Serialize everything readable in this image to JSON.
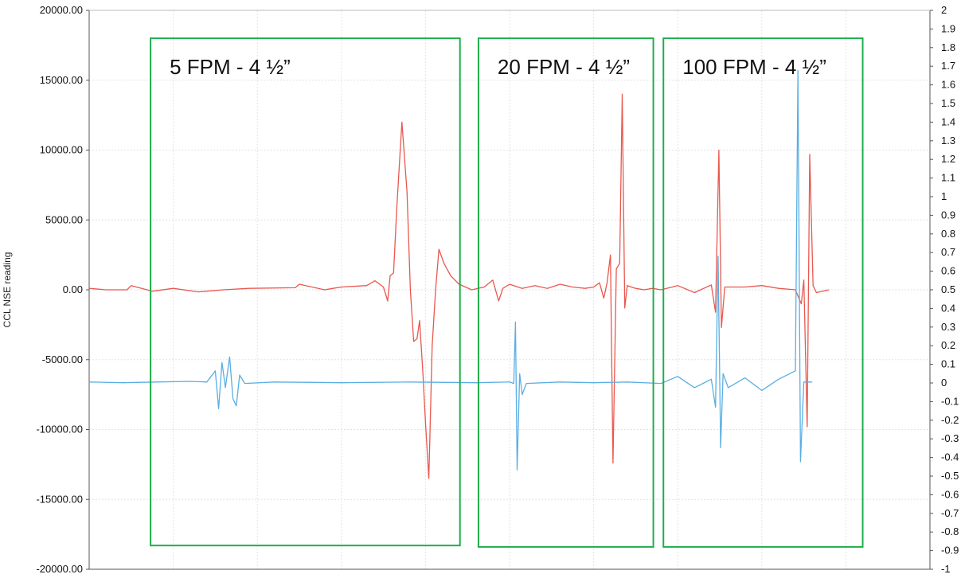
{
  "chart_data": {
    "type": "line",
    "title": "",
    "xlabel": "",
    "ylabel": "CCL NSE reading",
    "xlim": [
      0,
      1000
    ],
    "ylim": [
      -20000,
      20000
    ],
    "y2lim": [
      -1,
      2
    ],
    "grid": true,
    "legend": "none",
    "y_ticks": [
      "20000.00",
      "15000.00",
      "10000.00",
      "5000.00",
      "0.00",
      "-5000.00",
      "-10000.00",
      "-15000.00",
      "-20000.00"
    ],
    "y2_ticks": [
      "2",
      "1.9",
      "1.8",
      "1.7",
      "1.6",
      "1.5",
      "1.4",
      "1.3",
      "1.2",
      "1.1",
      "1",
      "0.9",
      "0.8",
      "0.7",
      "0.6",
      "0.5",
      "0.4",
      "0.3",
      "0.2",
      "0.1",
      "0",
      "-0.1",
      "-0.2",
      "-0.3",
      "-0.4",
      "-0.5",
      "-0.6",
      "-0.7",
      "-0.8",
      "-0.9",
      "-1"
    ],
    "boxes": [
      {
        "label": "5 FPM - 4 ½”",
        "x": [
          73,
          441
        ],
        "y": [
          -18300,
          18000
        ]
      },
      {
        "label": "20 FPM - 4 ½”",
        "x": [
          463,
          671
        ],
        "y": [
          -18400,
          18000
        ]
      },
      {
        "label": "100 FPM - 4 ½”",
        "x": [
          683,
          920
        ],
        "y": [
          -18400,
          18000
        ]
      }
    ],
    "series": [
      {
        "color": "#e8584f",
        "axis": "left",
        "points": [
          [
            0,
            100
          ],
          [
            20,
            0
          ],
          [
            45,
            0
          ],
          [
            50,
            300
          ],
          [
            75,
            -100
          ],
          [
            100,
            100
          ],
          [
            130,
            -150
          ],
          [
            160,
            0
          ],
          [
            190,
            100
          ],
          [
            245,
            150
          ],
          [
            250,
            400
          ],
          [
            280,
            0
          ],
          [
            290,
            100
          ],
          [
            300,
            200
          ],
          [
            330,
            300
          ],
          [
            340,
            650
          ],
          [
            350,
            200
          ],
          [
            355,
            -800
          ],
          [
            358,
            1000
          ],
          [
            362,
            1200
          ],
          [
            366,
            6000
          ],
          [
            372,
            12000
          ],
          [
            378,
            7000
          ],
          [
            382,
            0
          ],
          [
            386,
            -3700
          ],
          [
            390,
            -3500
          ],
          [
            393,
            -2200
          ],
          [
            397,
            -6000
          ],
          [
            400,
            -9500
          ],
          [
            404,
            -13500
          ],
          [
            408,
            -4000
          ],
          [
            412,
            0
          ],
          [
            416,
            2900
          ],
          [
            422,
            1900
          ],
          [
            430,
            1000
          ],
          [
            440,
            400
          ],
          [
            455,
            0
          ],
          [
            470,
            200
          ],
          [
            480,
            700
          ],
          [
            487,
            -800
          ],
          [
            492,
            100
          ],
          [
            500,
            400
          ],
          [
            515,
            100
          ],
          [
            530,
            300
          ],
          [
            545,
            100
          ],
          [
            560,
            400
          ],
          [
            575,
            200
          ],
          [
            590,
            100
          ],
          [
            600,
            200
          ],
          [
            607,
            500
          ],
          [
            612,
            -600
          ],
          [
            616,
            500
          ],
          [
            620,
            2500
          ],
          [
            623,
            -12400
          ],
          [
            627,
            1500
          ],
          [
            631,
            1900
          ],
          [
            634,
            14000
          ],
          [
            637,
            -1300
          ],
          [
            640,
            300
          ],
          [
            650,
            100
          ],
          [
            660,
            0
          ],
          [
            670,
            100
          ],
          [
            680,
            0
          ],
          [
            700,
            300
          ],
          [
            720,
            -200
          ],
          [
            740,
            350
          ],
          [
            745,
            -1600
          ],
          [
            749,
            10000
          ],
          [
            752,
            -2700
          ],
          [
            756,
            200
          ],
          [
            780,
            200
          ],
          [
            800,
            300
          ],
          [
            820,
            100
          ],
          [
            840,
            0
          ],
          [
            847,
            -1000
          ],
          [
            850,
            700
          ],
          [
            854,
            -9800
          ],
          [
            857,
            9700
          ],
          [
            861,
            300
          ],
          [
            865,
            -200
          ],
          [
            880,
            0
          ]
        ]
      },
      {
        "color": "#5aaee3",
        "axis": "left",
        "points": [
          [
            0,
            -6600
          ],
          [
            40,
            -6650
          ],
          [
            80,
            -6600
          ],
          [
            120,
            -6550
          ],
          [
            140,
            -6600
          ],
          [
            150,
            -5800
          ],
          [
            154,
            -8500
          ],
          [
            158,
            -5200
          ],
          [
            162,
            -7000
          ],
          [
            167,
            -4800
          ],
          [
            171,
            -7800
          ],
          [
            175,
            -8300
          ],
          [
            179,
            -6100
          ],
          [
            185,
            -6700
          ],
          [
            220,
            -6600
          ],
          [
            300,
            -6650
          ],
          [
            380,
            -6600
          ],
          [
            460,
            -6650
          ],
          [
            500,
            -6600
          ],
          [
            505,
            -6700
          ],
          [
            507,
            -2300
          ],
          [
            509,
            -12900
          ],
          [
            512,
            -6000
          ],
          [
            515,
            -7500
          ],
          [
            520,
            -6700
          ],
          [
            560,
            -6600
          ],
          [
            600,
            -6650
          ],
          [
            640,
            -6600
          ],
          [
            680,
            -6700
          ],
          [
            700,
            -6200
          ],
          [
            720,
            -7000
          ],
          [
            740,
            -6400
          ],
          [
            745,
            -8400
          ],
          [
            748,
            2400
          ],
          [
            751,
            -11300
          ],
          [
            754,
            -6000
          ],
          [
            760,
            -7000
          ],
          [
            780,
            -6300
          ],
          [
            800,
            -7200
          ],
          [
            820,
            -6400
          ],
          [
            840,
            -5800
          ],
          [
            843,
            15700
          ],
          [
            846,
            -12300
          ],
          [
            850,
            -6600
          ],
          [
            860,
            -6600
          ]
        ]
      }
    ]
  }
}
